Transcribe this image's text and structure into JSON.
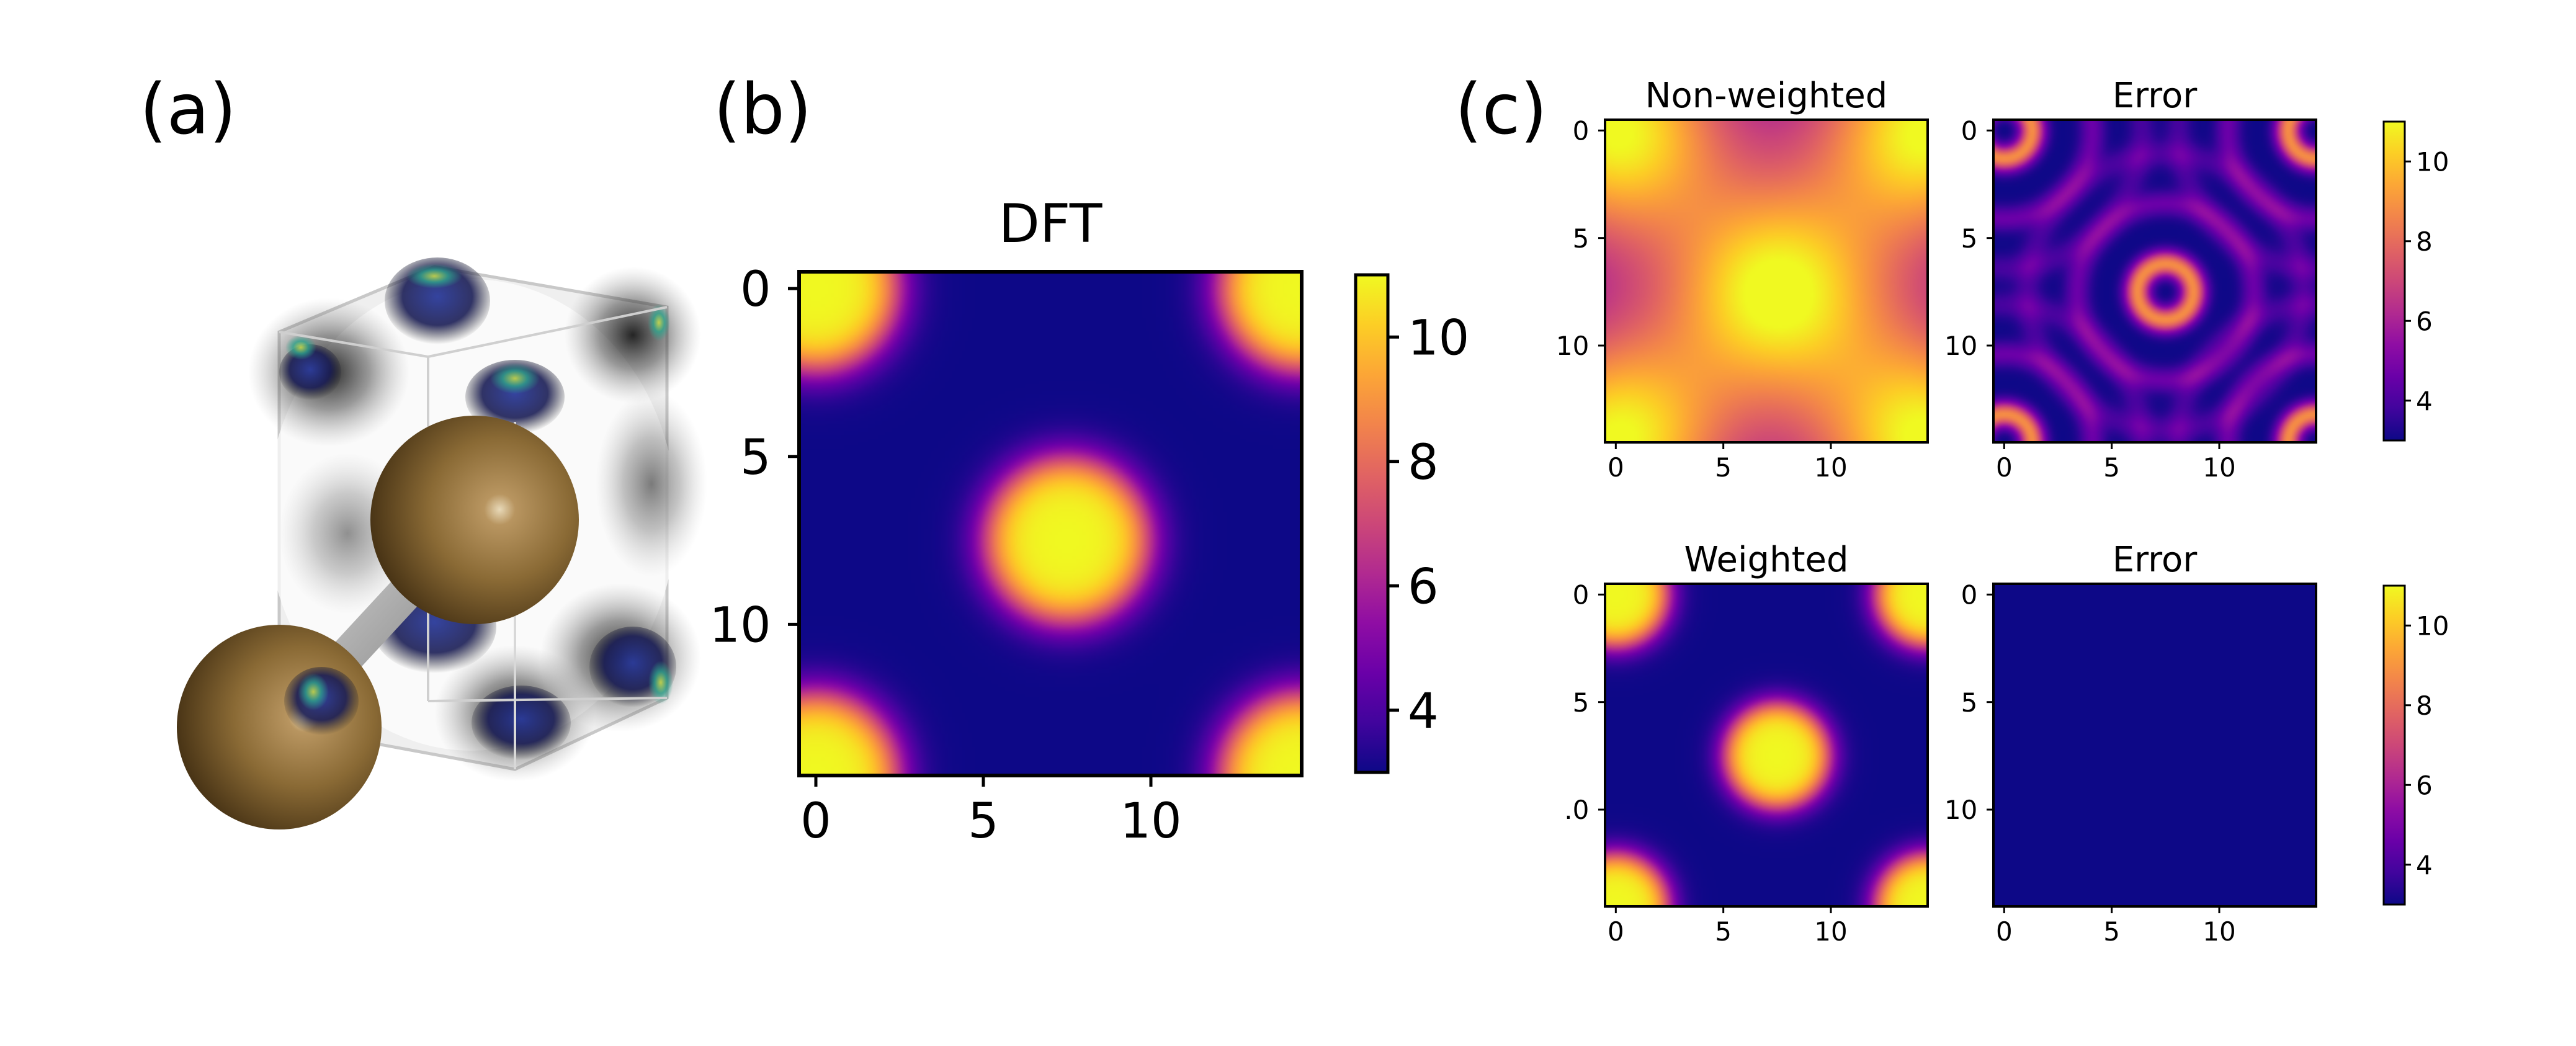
{
  "panel_labels": {
    "a": "(a)",
    "b": "(b)",
    "c": "(c)"
  },
  "colormap": {
    "name": "plasma",
    "stops": [
      "#0d0887",
      "#41049d",
      "#6a00a8",
      "#8f0da4",
      "#b12a90",
      "#cc4778",
      "#e16462",
      "#f2844b",
      "#fca636",
      "#fcce25",
      "#f0f921"
    ]
  },
  "structure": {
    "atom_color": "#8a6a35",
    "orbital_colors": [
      "#2a3a9a",
      "#2fa38c",
      "#c9d94a"
    ]
  },
  "chart_data": [
    {
      "id": "b",
      "type": "heatmap",
      "title": "DFT",
      "grid": false,
      "x_ticks": [
        "0",
        "5",
        "10"
      ],
      "y_ticks": [
        "0",
        "5",
        "10"
      ],
      "xlim": [
        -0.5,
        14.5
      ],
      "ylim": [
        14.5,
        -0.5
      ],
      "colorbar": {
        "range": [
          3,
          11
        ],
        "ticks": [
          "4",
          "6",
          "8",
          "10"
        ]
      },
      "field": {
        "kind": "peaks",
        "background": 3.0,
        "peaks": [
          {
            "x": 7.5,
            "y": 7.5,
            "amp": 8.0,
            "radius": 2.4
          },
          {
            "x": 0,
            "y": 0,
            "amp": 8.0,
            "radius": 2.4
          },
          {
            "x": 14.5,
            "y": 0,
            "amp": 8.0,
            "radius": 2.4
          },
          {
            "x": 0,
            "y": 14.5,
            "amp": 8.0,
            "radius": 2.4
          },
          {
            "x": 14.5,
            "y": 14.5,
            "amp": 8.0,
            "radius": 2.4
          }
        ]
      }
    },
    {
      "id": "c1",
      "type": "heatmap",
      "title": "Non-weighted",
      "grid": false,
      "x_ticks": [
        "0",
        "5",
        "10"
      ],
      "y_ticks": [
        "0",
        "5",
        "10"
      ],
      "xlim": [
        -0.5,
        14.5
      ],
      "ylim": [
        14.5,
        -0.5
      ],
      "field": {
        "kind": "broad",
        "background": 4.2,
        "peaks": [
          {
            "x": 7.5,
            "y": 7.5,
            "amp": 6.8,
            "radius": 3.6
          },
          {
            "x": 0,
            "y": 0,
            "amp": 6.8,
            "radius": 3.6
          },
          {
            "x": 14.5,
            "y": 0,
            "amp": 6.8,
            "radius": 3.6
          },
          {
            "x": 0,
            "y": 14.5,
            "amp": 6.8,
            "radius": 3.6
          },
          {
            "x": 14.5,
            "y": 14.5,
            "amp": 6.8,
            "radius": 3.6
          }
        ]
      }
    },
    {
      "id": "c2",
      "type": "heatmap",
      "title": "Error",
      "grid": false,
      "x_ticks": [
        "0",
        "5",
        "10"
      ],
      "y_ticks": [
        "0",
        "5",
        "10"
      ],
      "xlim": [
        -0.5,
        14.5
      ],
      "ylim": [
        14.5,
        -0.5
      ],
      "colorbar": {
        "range": [
          3,
          11
        ],
        "ticks": [
          "4",
          "6",
          "8",
          "10"
        ]
      },
      "field": {
        "kind": "rings",
        "background": 3.0,
        "peaks": [
          {
            "x": 7.5,
            "y": 7.5,
            "amp": 5.8,
            "radius": 1.3
          },
          {
            "x": 0,
            "y": 0,
            "amp": 5.8,
            "radius": 1.3
          },
          {
            "x": 14.5,
            "y": 0,
            "amp": 5.8,
            "radius": 1.3
          },
          {
            "x": 0,
            "y": 14.5,
            "amp": 5.8,
            "radius": 1.3
          },
          {
            "x": 14.5,
            "y": 14.5,
            "amp": 5.8,
            "radius": 1.3
          }
        ]
      }
    },
    {
      "id": "c3",
      "type": "heatmap",
      "title": "Weighted",
      "grid": false,
      "x_ticks": [
        "0",
        "5",
        "10"
      ],
      "y_ticks": [
        "0",
        "5",
        ".0"
      ],
      "xlim": [
        -0.5,
        14.5
      ],
      "ylim": [
        14.5,
        -0.5
      ],
      "field": {
        "kind": "peaks",
        "background": 3.0,
        "peaks": [
          {
            "x": 7.5,
            "y": 7.5,
            "amp": 8.0,
            "radius": 2.4
          },
          {
            "x": 0,
            "y": 0,
            "amp": 8.0,
            "radius": 2.4
          },
          {
            "x": 14.5,
            "y": 0,
            "amp": 8.0,
            "radius": 2.4
          },
          {
            "x": 0,
            "y": 14.5,
            "amp": 8.0,
            "radius": 2.4
          },
          {
            "x": 14.5,
            "y": 14.5,
            "amp": 8.0,
            "radius": 2.4
          }
        ]
      }
    },
    {
      "id": "c4",
      "type": "heatmap",
      "title": "Error",
      "grid": false,
      "x_ticks": [
        "0",
        "5",
        "10"
      ],
      "y_ticks": [
        "0",
        "5",
        "10"
      ],
      "xlim": [
        -0.5,
        14.5
      ],
      "ylim": [
        14.5,
        -0.5
      ],
      "colorbar": {
        "range": [
          3,
          11
        ],
        "ticks": [
          "4",
          "6",
          "8",
          "10"
        ]
      },
      "field": {
        "kind": "flat",
        "background": 3.0,
        "peaks": []
      }
    }
  ]
}
